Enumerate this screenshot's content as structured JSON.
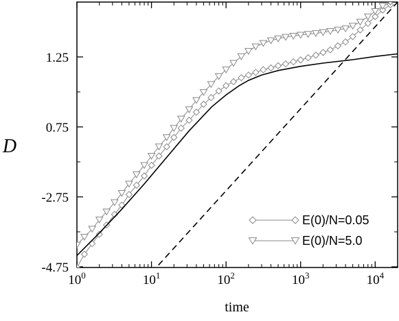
{
  "chart_data": {
    "type": "line",
    "title": "",
    "xlabel": "time",
    "ylabel": "D",
    "xscale": "log",
    "xlim": [
      1,
      20000
    ],
    "x_ticks": [
      {
        "base": "10",
        "exp": "0"
      },
      {
        "base": "10",
        "exp": "1"
      },
      {
        "base": "10",
        "exp": "2"
      },
      {
        "base": "10",
        "exp": "3"
      },
      {
        "base": "10",
        "exp": "4"
      }
    ],
    "y_ticks": [
      "1.25",
      "0.75",
      "-2.75",
      "-4.75"
    ],
    "grid": false,
    "legend_position": "bottom-right",
    "series": [
      {
        "name": "E(0)/N=0.05",
        "style": "thin line with open diamonds",
        "color": "#888888",
        "points": [
          [
            1,
            0.0
          ],
          [
            1.26,
            0.05
          ],
          [
            1.6,
            0.09
          ],
          [
            2.0,
            0.125
          ],
          [
            2.5,
            0.16
          ],
          [
            3.2,
            0.2
          ],
          [
            4.0,
            0.235
          ],
          [
            5.0,
            0.275
          ],
          [
            6.3,
            0.31
          ],
          [
            8.0,
            0.345
          ],
          [
            10,
            0.385
          ],
          [
            12.6,
            0.42
          ],
          [
            16,
            0.455
          ],
          [
            20,
            0.49
          ],
          [
            25,
            0.525
          ],
          [
            32,
            0.555
          ],
          [
            40,
            0.585
          ],
          [
            50,
            0.615
          ],
          [
            63,
            0.64
          ],
          [
            80,
            0.665
          ],
          [
            100,
            0.685
          ],
          [
            126,
            0.7
          ],
          [
            160,
            0.715
          ],
          [
            200,
            0.725
          ],
          [
            250,
            0.735
          ],
          [
            316,
            0.745
          ],
          [
            400,
            0.752
          ],
          [
            500,
            0.76
          ],
          [
            630,
            0.767
          ],
          [
            800,
            0.775
          ],
          [
            1000,
            0.782
          ],
          [
            1260,
            0.79
          ],
          [
            1600,
            0.8
          ],
          [
            2000,
            0.81
          ],
          [
            2500,
            0.82
          ],
          [
            3160,
            0.835
          ],
          [
            4000,
            0.85
          ],
          [
            5000,
            0.87
          ],
          [
            6300,
            0.895
          ],
          [
            8000,
            0.92
          ],
          [
            10000,
            0.945
          ],
          [
            12600,
            0.97
          ],
          [
            16000,
            0.99
          ]
        ]
      },
      {
        "name": "E(0)/N=5.0",
        "style": "thin line with open down-triangles",
        "color": "#888888",
        "points": [
          [
            1,
            0.085
          ],
          [
            1.26,
            0.115
          ],
          [
            1.6,
            0.145
          ],
          [
            2.0,
            0.18
          ],
          [
            2.5,
            0.21
          ],
          [
            3.2,
            0.245
          ],
          [
            4.0,
            0.28
          ],
          [
            5.0,
            0.315
          ],
          [
            6.3,
            0.35
          ],
          [
            8.0,
            0.385
          ],
          [
            10,
            0.42
          ],
          [
            12.6,
            0.455
          ],
          [
            16,
            0.49
          ],
          [
            20,
            0.525
          ],
          [
            25,
            0.56
          ],
          [
            32,
            0.595
          ],
          [
            40,
            0.63
          ],
          [
            50,
            0.66
          ],
          [
            63,
            0.69
          ],
          [
            80,
            0.72
          ],
          [
            100,
            0.745
          ],
          [
            126,
            0.77
          ],
          [
            160,
            0.795
          ],
          [
            200,
            0.815
          ],
          [
            250,
            0.832
          ],
          [
            316,
            0.845
          ],
          [
            400,
            0.855
          ],
          [
            500,
            0.862
          ],
          [
            630,
            0.868
          ],
          [
            800,
            0.872
          ],
          [
            1000,
            0.876
          ],
          [
            1260,
            0.879
          ],
          [
            1600,
            0.882
          ],
          [
            2000,
            0.886
          ],
          [
            2500,
            0.89
          ],
          [
            3160,
            0.895
          ],
          [
            4000,
            0.9
          ],
          [
            5000,
            0.91
          ],
          [
            6300,
            0.925
          ],
          [
            8000,
            0.945
          ],
          [
            10000,
            0.965
          ],
          [
            12600,
            0.985
          ],
          [
            16000,
            1.0
          ]
        ]
      },
      {
        "name": "",
        "style": "solid black line",
        "color": "#000000",
        "points": [
          [
            1,
            0.045
          ],
          [
            2,
            0.13
          ],
          [
            4,
            0.22
          ],
          [
            8,
            0.315
          ],
          [
            16,
            0.415
          ],
          [
            32,
            0.515
          ],
          [
            64,
            0.605
          ],
          [
            100,
            0.65
          ],
          [
            150,
            0.685
          ],
          [
            200,
            0.705
          ],
          [
            300,
            0.725
          ],
          [
            500,
            0.742
          ],
          [
            1000,
            0.758
          ],
          [
            2000,
            0.77
          ],
          [
            5000,
            0.783
          ],
          [
            10000,
            0.795
          ],
          [
            20000,
            0.805
          ]
        ]
      },
      {
        "name": "",
        "style": "dashed black line",
        "color": "#000000",
        "points": [
          [
            10,
            -0.02
          ],
          [
            20000,
            1.0
          ]
        ]
      }
    ]
  }
}
